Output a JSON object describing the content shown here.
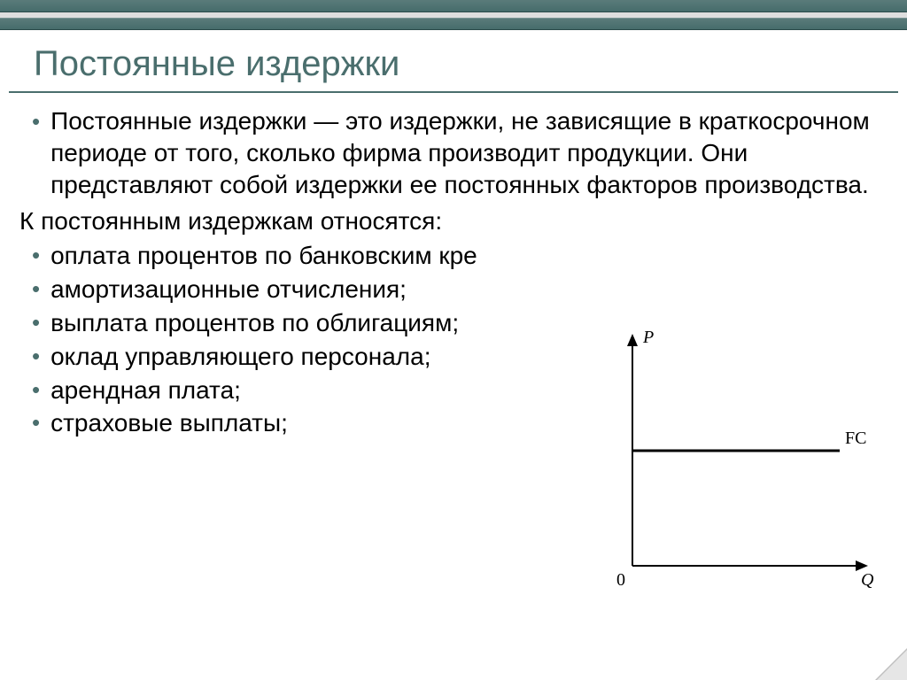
{
  "title": "Постоянные издержки",
  "definition": "Постоянные издержки  — это издержки, не зависящие в краткосрочном периоде от того, сколько фирма производит продукции. Они представляют собой издержки ее постоянных факторов производства.",
  "list_heading": "К постоянным издержкам относятся:",
  "items": [
    "оплата процентов по банковским кре",
    "амортизационные отчисления;",
    "выплата процентов по облигациям;",
    "оклад управляющего персонала;",
    "арендная плата;",
    "страховые выплаты;"
  ],
  "chart": {
    "type": "line",
    "y_axis_label": "P",
    "x_axis_label": "Q",
    "origin_label": "0",
    "line_label": "FC",
    "axis_color": "#000000",
    "line_color": "#000000",
    "line_width": 3,
    "axis_width": 2,
    "background_color": "#ffffff",
    "x_range": [
      0,
      10
    ],
    "y_range": [
      0,
      10
    ],
    "fc_y_value": 5.2,
    "label_fontsize": 20,
    "label_font": "serif"
  },
  "colors": {
    "accent": "#4a6e6d",
    "topbar": "#4f7271",
    "bg": "#ffffff",
    "text": "#000000"
  }
}
